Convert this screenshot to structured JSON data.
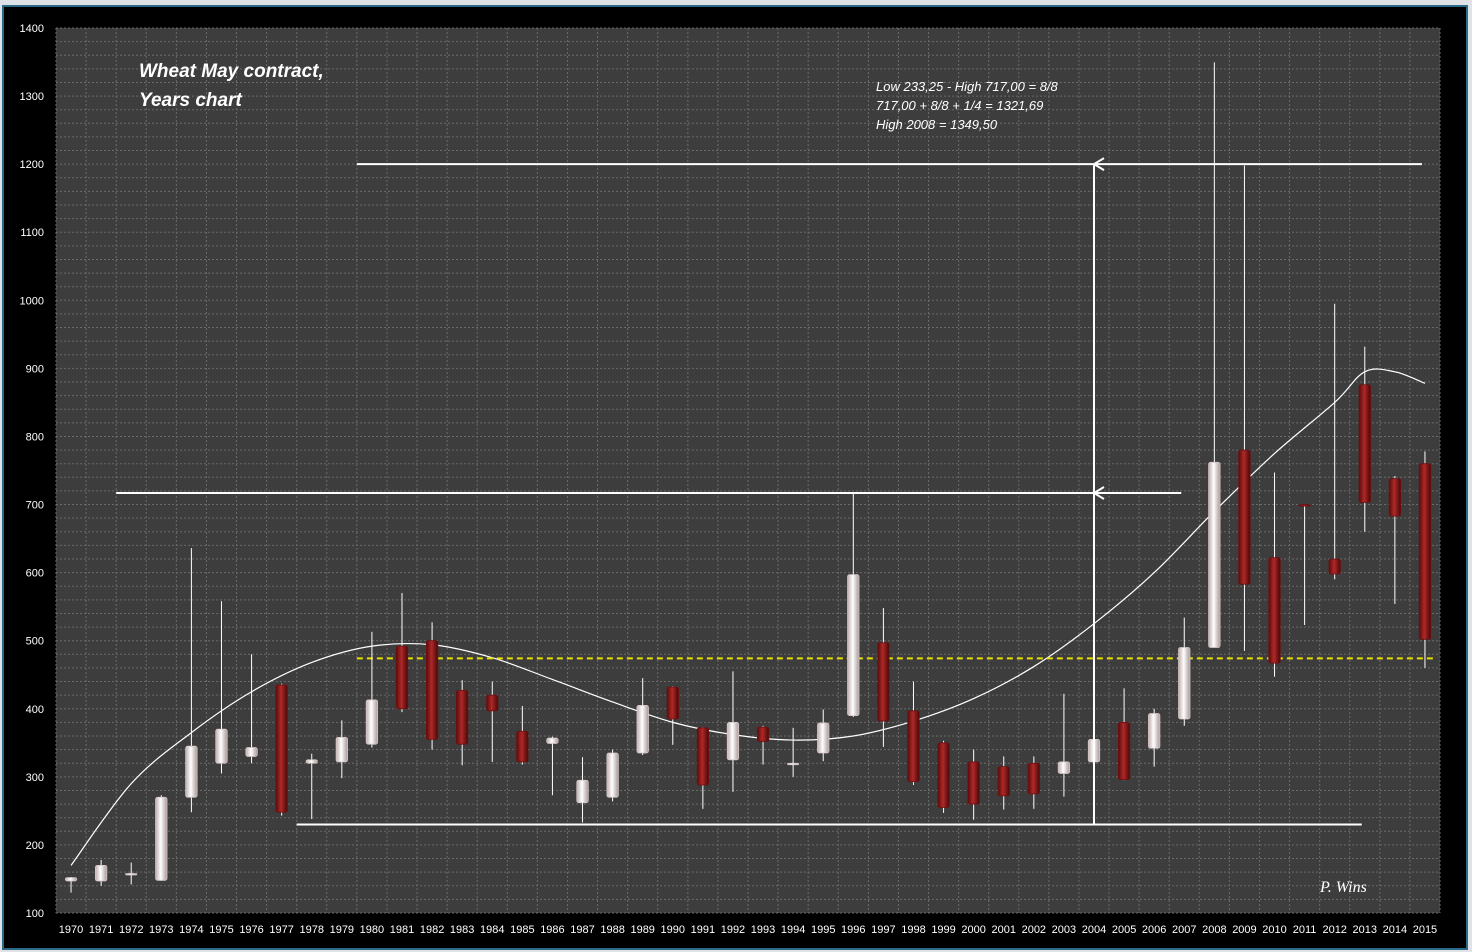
{
  "chart_data": {
    "type": "candlestick",
    "title_lines": [
      "Wheat May contract,",
      "Years chart"
    ],
    "annotation_lines": [
      "Low 233,25 - High 717,00 = 8/8",
      "717,00 + 8/8 + 1/4 = 1321,69",
      "High 2008 = 1349,50"
    ],
    "author": "P. Wins",
    "ylim": [
      100,
      1400
    ],
    "y_ticks": [
      100,
      200,
      300,
      400,
      500,
      600,
      700,
      800,
      900,
      1000,
      1100,
      1200,
      1300,
      1400
    ],
    "grid": true,
    "categories": [
      "1970",
      "1971",
      "1972",
      "1973",
      "1974",
      "1975",
      "1976",
      "1977",
      "1978",
      "1979",
      "1980",
      "1981",
      "1982",
      "1983",
      "1984",
      "1985",
      "1986",
      "1987",
      "1988",
      "1989",
      "1990",
      "1991",
      "1992",
      "1993",
      "1994",
      "1995",
      "1996",
      "1997",
      "1998",
      "1999",
      "2000",
      "2001",
      "2002",
      "2003",
      "2004",
      "2005",
      "2006",
      "2007",
      "2008",
      "2009",
      "2010",
      "2011",
      "2012",
      "2013",
      "2014",
      "2015"
    ],
    "candles": [
      {
        "o": 147,
        "h": 153,
        "l": 130,
        "c": 152
      },
      {
        "o": 147,
        "h": 178,
        "l": 140,
        "c": 170
      },
      {
        "o": 158,
        "h": 174,
        "l": 142,
        "c": 158
      },
      {
        "o": 148,
        "h": 273,
        "l": 147,
        "c": 270
      },
      {
        "o": 270,
        "h": 636,
        "l": 248,
        "c": 345
      },
      {
        "o": 320,
        "h": 558,
        "l": 305,
        "c": 370
      },
      {
        "o": 330,
        "h": 480,
        "l": 320,
        "c": 343
      },
      {
        "o": 435,
        "h": 437,
        "l": 243,
        "c": 248
      },
      {
        "o": 320,
        "h": 334,
        "l": 238,
        "c": 325
      },
      {
        "o": 322,
        "h": 383,
        "l": 298,
        "c": 358
      },
      {
        "o": 348,
        "h": 513,
        "l": 343,
        "c": 413
      },
      {
        "o": 492,
        "h": 570,
        "l": 395,
        "c": 400
      },
      {
        "o": 500,
        "h": 527,
        "l": 340,
        "c": 355
      },
      {
        "o": 427,
        "h": 442,
        "l": 317,
        "c": 348
      },
      {
        "o": 420,
        "h": 440,
        "l": 322,
        "c": 397
      },
      {
        "o": 367,
        "h": 404,
        "l": 318,
        "c": 322
      },
      {
        "o": 349,
        "h": 359,
        "l": 273,
        "c": 357
      },
      {
        "o": 262,
        "h": 329,
        "l": 233,
        "c": 295
      },
      {
        "o": 270,
        "h": 340,
        "l": 264,
        "c": 335
      },
      {
        "o": 335,
        "h": 445,
        "l": 332,
        "c": 405
      },
      {
        "o": 432,
        "h": 433,
        "l": 347,
        "c": 385
      },
      {
        "o": 372,
        "h": 373,
        "l": 253,
        "c": 288
      },
      {
        "o": 325,
        "h": 455,
        "l": 278,
        "c": 380
      },
      {
        "o": 373,
        "h": 375,
        "l": 318,
        "c": 352
      },
      {
        "o": 320,
        "h": 372,
        "l": 300,
        "c": 320
      },
      {
        "o": 335,
        "h": 399,
        "l": 323,
        "c": 379
      },
      {
        "o": 390,
        "h": 717,
        "l": 388,
        "c": 597
      },
      {
        "o": 497,
        "h": 548,
        "l": 344,
        "c": 382
      },
      {
        "o": 397,
        "h": 440,
        "l": 288,
        "c": 293
      },
      {
        "o": 350,
        "h": 353,
        "l": 247,
        "c": 255
      },
      {
        "o": 322,
        "h": 340,
        "l": 237,
        "c": 260
      },
      {
        "o": 315,
        "h": 330,
        "l": 252,
        "c": 272
      },
      {
        "o": 320,
        "h": 330,
        "l": 253,
        "c": 275
      },
      {
        "o": 305,
        "h": 422,
        "l": 271,
        "c": 322
      },
      {
        "o": 322,
        "h": 422,
        "l": 303,
        "c": 355
      },
      {
        "o": 380,
        "h": 430,
        "l": 295,
        "c": 296
      },
      {
        "o": 342,
        "h": 400,
        "l": 315,
        "c": 393
      },
      {
        "o": 385,
        "h": 534,
        "l": 375,
        "c": 490
      },
      {
        "o": 490,
        "h": 1349.5,
        "l": 490,
        "c": 762
      },
      {
        "o": 780,
        "h": 1198,
        "l": 485,
        "c": 583
      },
      {
        "o": 622,
        "h": 747,
        "l": 447,
        "c": 467
      },
      {
        "o": 700,
        "h": 700,
        "l": 523,
        "c": 698
      },
      {
        "o": 620,
        "h": 995,
        "l": 590,
        "c": 598
      },
      {
        "o": 876,
        "h": 932,
        "l": 660,
        "c": 703
      },
      {
        "o": 738,
        "h": 742,
        "l": 554,
        "c": 683
      },
      {
        "o": 760,
        "h": 778,
        "l": 460,
        "c": 502
      }
    ],
    "reference_lines": [
      {
        "y": 1200,
        "from": "1980",
        "to": "2015"
      },
      {
        "y": 717,
        "from": "1972",
        "to": "2007"
      },
      {
        "y": 230,
        "from": "1978",
        "to": "2013"
      }
    ],
    "dashed_line": {
      "y": 474,
      "from": "1980",
      "to": "2015",
      "color": "#e8e000"
    },
    "arrows": [
      {
        "x": "2004",
        "from": 230,
        "to": 1200
      },
      {
        "x": "2004",
        "from": 230,
        "to": 717
      }
    ],
    "trend_curve": [
      {
        "x": "1970",
        "y": 170
      },
      {
        "x": "1972",
        "y": 290
      },
      {
        "x": "1974",
        "y": 365
      },
      {
        "x": "1976",
        "y": 425
      },
      {
        "x": "1978",
        "y": 468
      },
      {
        "x": "1980",
        "y": 492
      },
      {
        "x": "1982",
        "y": 494
      },
      {
        "x": "1984",
        "y": 475
      },
      {
        "x": "1986",
        "y": 443
      },
      {
        "x": "1988",
        "y": 410
      },
      {
        "x": "1990",
        "y": 380
      },
      {
        "x": "1992",
        "y": 362
      },
      {
        "x": "1994",
        "y": 354
      },
      {
        "x": "1996",
        "y": 360
      },
      {
        "x": "1998",
        "y": 382
      },
      {
        "x": "2000",
        "y": 415
      },
      {
        "x": "2002",
        "y": 462
      },
      {
        "x": "2004",
        "y": 525
      },
      {
        "x": "2006",
        "y": 600
      },
      {
        "x": "2008",
        "y": 690
      },
      {
        "x": "2010",
        "y": 775
      },
      {
        "x": "2012",
        "y": 850
      },
      {
        "x": "2013",
        "y": 895
      },
      {
        "x": "2014",
        "y": 895
      },
      {
        "x": "2015",
        "y": 878
      }
    ],
    "colors": {
      "background": "#000000",
      "plot_area": "#3d3d3d",
      "grid": "#6a6a6a",
      "bull_body": "#ecdcdc",
      "bear_body": "#8a1a1a",
      "wick": "#ffffff",
      "dashed": "#e8e000"
    }
  }
}
